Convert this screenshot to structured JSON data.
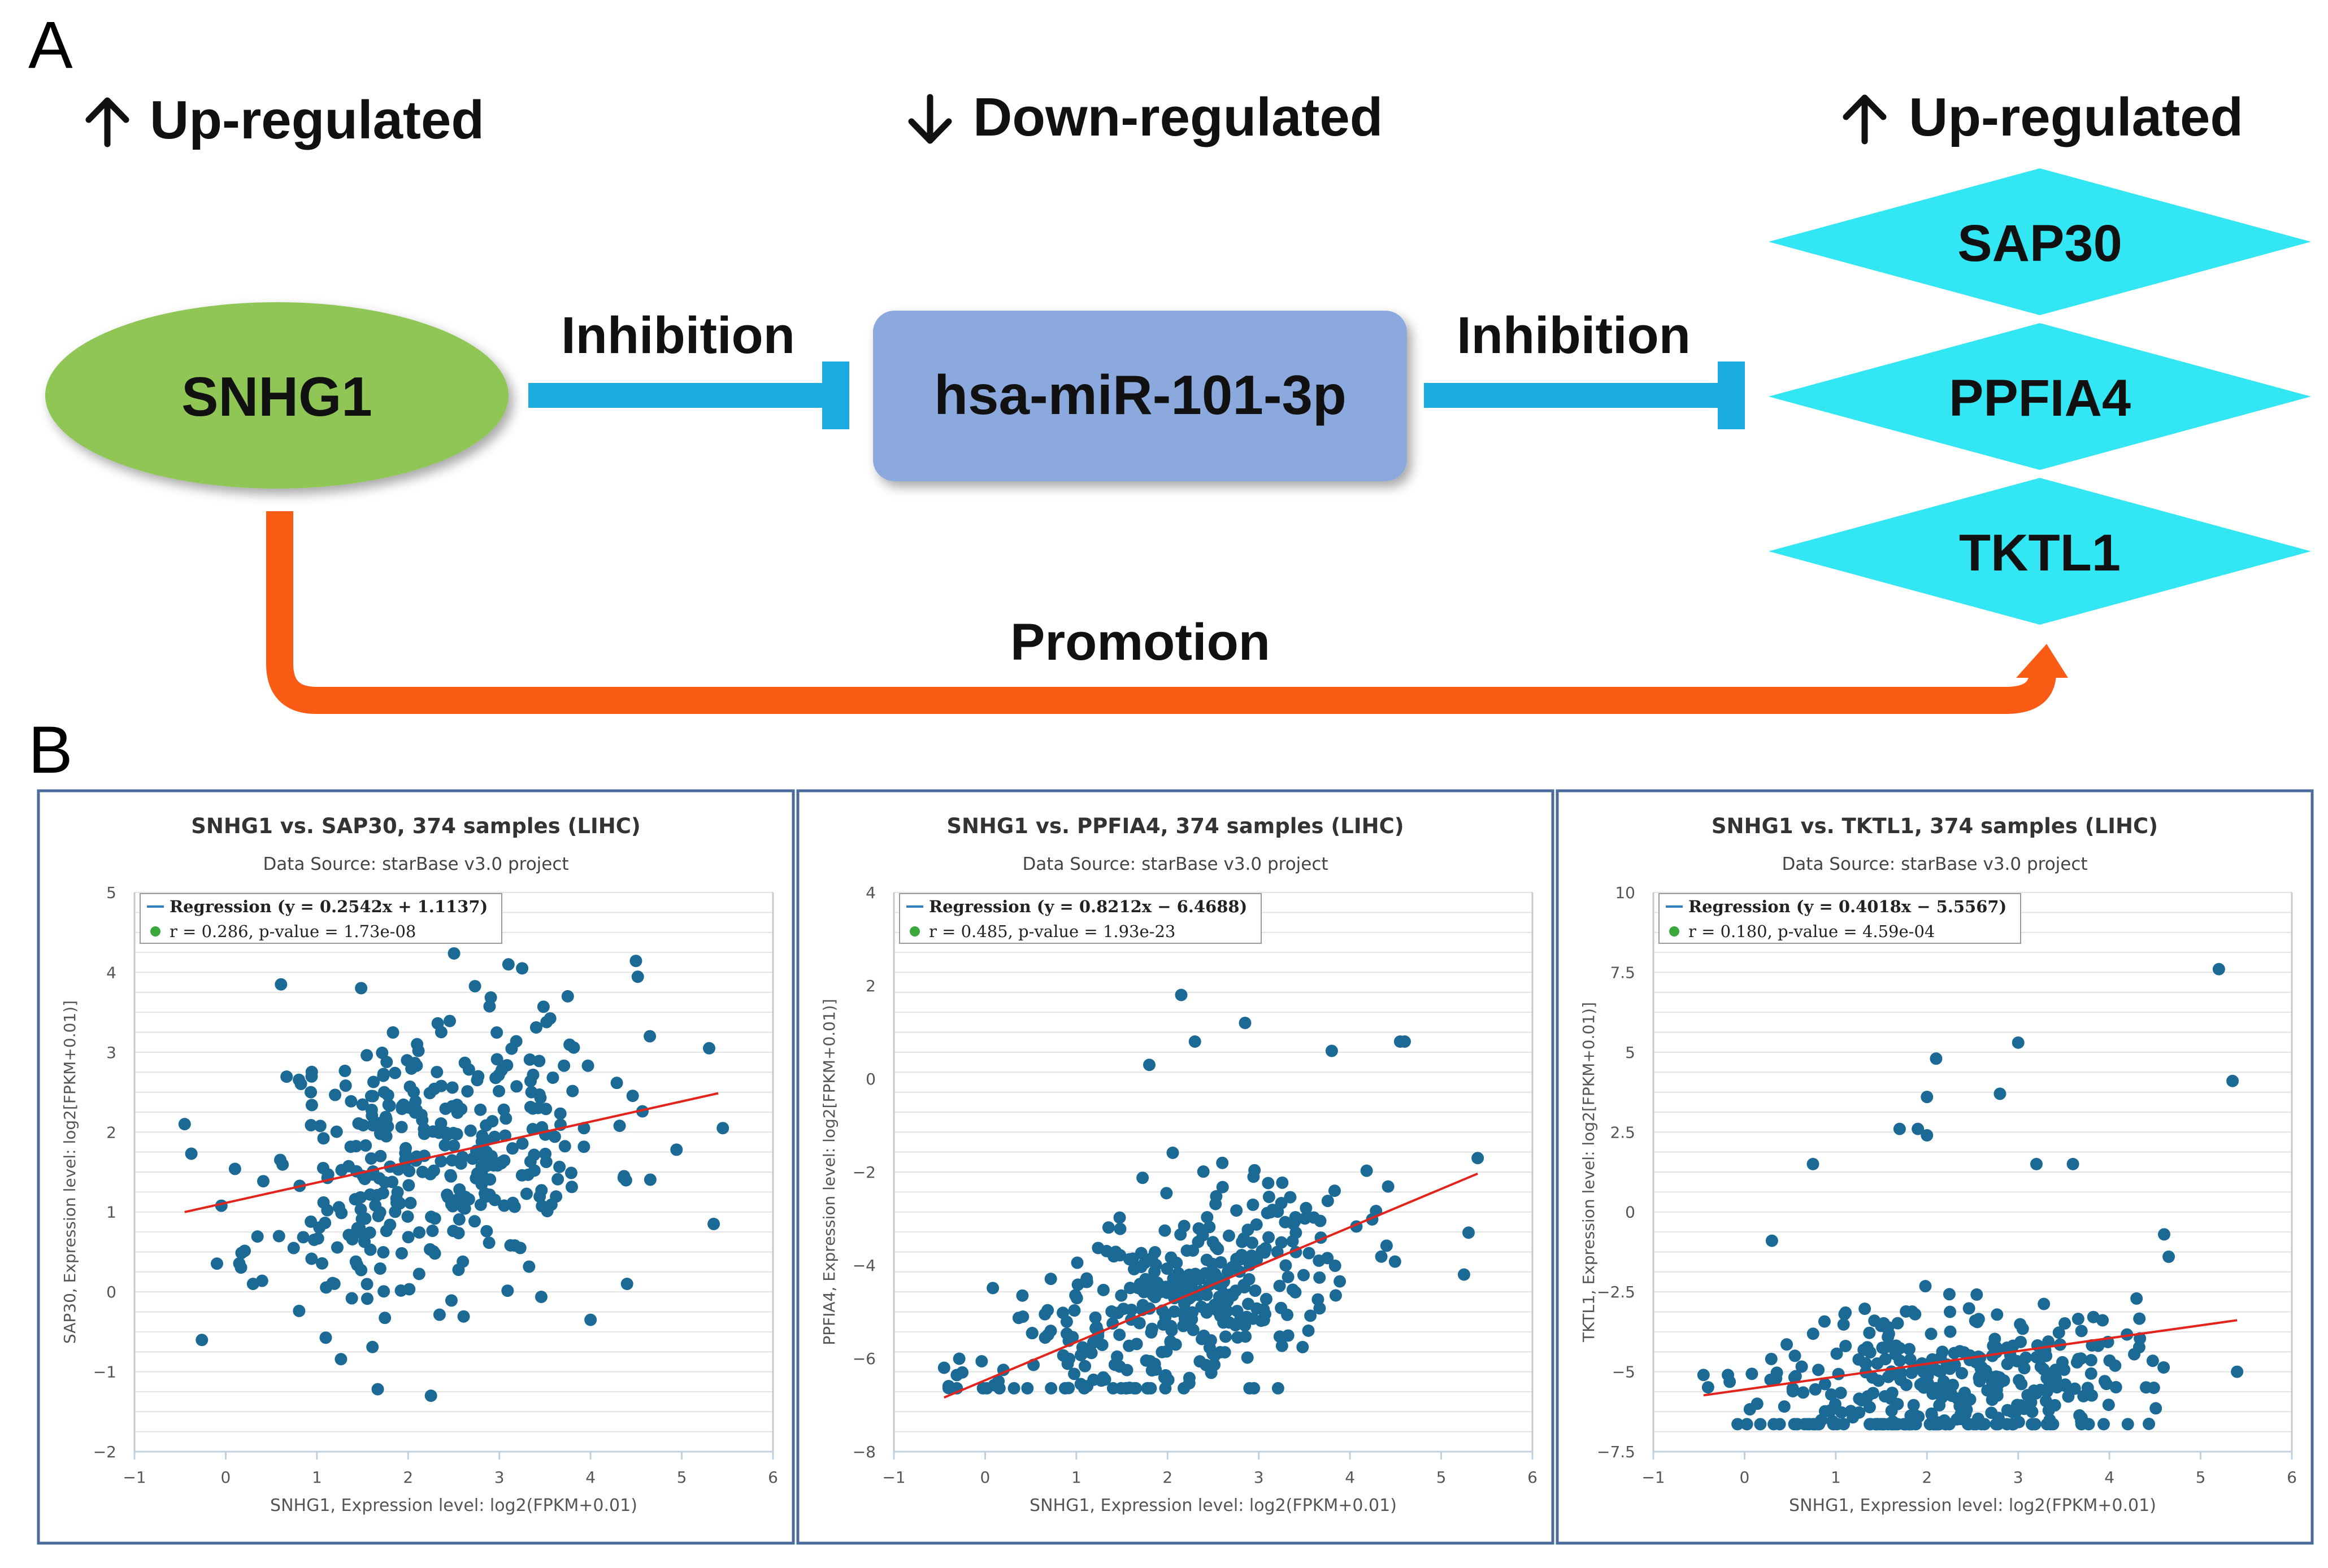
{
  "panel_a": {
    "label": "A",
    "header_left": "Up-regulated",
    "header_mid": "Down-regulated",
    "header_right": "Up-regulated",
    "node_lnc": "SNHG1",
    "node_mir": "hsa-miR-101-3p",
    "targets": [
      "SAP30",
      "PPFIA4",
      "TKTL1"
    ],
    "edge_inhibition_1": "Inhibition",
    "edge_inhibition_2": "Inhibition",
    "edge_promotion": "Promotion",
    "colors": {
      "lnc": "#8fc654",
      "mir": "#8ba9dc",
      "target": "#33e6f4",
      "inhibit": "#1aabdf",
      "promote": "#fb5c15",
      "frame": "#4a6b9c",
      "point": "#1b6a96",
      "reg": "#e3241c"
    }
  },
  "panel_b": {
    "label": "B"
  },
  "chart_data": [
    {
      "type": "scatter",
      "title": "SNHG1 vs. SAP30, 374 samples (LIHC)",
      "subtitle": "Data Source: starBase v3.0 project",
      "xlabel": "SNHG1, Expression level: log2(FPKM+0.01)",
      "ylabel": "SAP30, Expression level: log2[FPKM+0.01)]",
      "xlim": [
        -1,
        6
      ],
      "ylim": [
        -2,
        5
      ],
      "xticks": [
        "−1",
        "0",
        "1",
        "2",
        "3",
        "4",
        "5",
        "6"
      ],
      "yticks": [
        "−2",
        "−1",
        "0",
        "1",
        "2",
        "3",
        "4",
        "5"
      ],
      "legend_regression": "Regression (y = 0.2542x + 1.1137)",
      "legend_stats": "r = 0.286, p-value = 1.73e-08",
      "regression": {
        "slope": 0.2542,
        "intercept": 1.1137,
        "x_range": [
          -0.45,
          5.4
        ]
      },
      "n": 374,
      "seed": 11,
      "center": [
        2.3,
        1.7
      ],
      "sd": [
        0.95,
        0.95
      ],
      "corr": 0.29,
      "y_floor": null,
      "outliers": [
        [
          2.25,
          -1.3
        ],
        [
          3.1,
          4.1
        ],
        [
          3.25,
          4.05
        ],
        [
          3.75,
          3.7
        ],
        [
          4.65,
          3.2
        ],
        [
          5.3,
          3.05
        ],
        [
          -0.45,
          2.1
        ],
        [
          5.45,
          2.05
        ],
        [
          5.35,
          0.85
        ],
        [
          4,
          -0.35
        ],
        [
          4.4,
          0.1
        ],
        [
          0.3,
          0.1
        ]
      ]
    },
    {
      "type": "scatter",
      "title": "SNHG1 vs. PPFIA4, 374 samples (LIHC)",
      "subtitle": "Data Source: starBase v3.0 project",
      "xlabel": "SNHG1, Expression level: log2(FPKM+0.01)",
      "ylabel": "PPFIA4, Expression level: log2[FPKM+0.01)]",
      "xlim": [
        -1,
        6
      ],
      "ylim": [
        -8,
        4
      ],
      "xticks": [
        "−1",
        "0",
        "1",
        "2",
        "3",
        "4",
        "5",
        "6"
      ],
      "yticks": [
        "−8",
        "−6",
        "−4",
        "−2",
        "0",
        "2",
        "4"
      ],
      "legend_regression": "Regression (y = 0.8212x − 6.4688)",
      "legend_stats": "r = 0.485, p-value = 1.93e-23",
      "regression": {
        "slope": 0.8212,
        "intercept": -6.4688,
        "x_range": [
          -0.45,
          5.4
        ]
      },
      "n": 374,
      "seed": 23,
      "center": [
        2.1,
        -4.8
      ],
      "sd": [
        0.95,
        1.2
      ],
      "corr": 0.48,
      "y_floor": -6.64,
      "outliers": [
        [
          2.15,
          1.8
        ],
        [
          2.85,
          1.2
        ],
        [
          2.3,
          0.8
        ],
        [
          1.8,
          0.3
        ],
        [
          4.6,
          0.8
        ],
        [
          4.55,
          0.8
        ],
        [
          3.8,
          0.6
        ],
        [
          5.4,
          -1.7
        ],
        [
          5.3,
          -3.3
        ],
        [
          5.25,
          -4.2
        ],
        [
          -0.45,
          -6.2
        ],
        [
          -0.25,
          -6.3
        ]
      ]
    },
    {
      "type": "scatter",
      "title": "SNHG1 vs. TKTL1, 374 samples (LIHC)",
      "subtitle": "Data Source: starBase v3.0 project",
      "xlabel": "SNHG1, Expression level: log2(FPKM+0.01)",
      "ylabel": "TKTL1, Expression level: log2[FPKM+0.01)]",
      "xlim": [
        -1,
        6
      ],
      "ylim": [
        -7.5,
        10
      ],
      "xticks": [
        "−1",
        "0",
        "1",
        "2",
        "3",
        "4",
        "5",
        "6"
      ],
      "yticks": [
        "−7.5",
        "−5",
        "−2.5",
        "0",
        "2.5",
        "5",
        "7.5",
        "10"
      ],
      "legend_regression": "Regression (y = 0.4018x − 5.5567)",
      "legend_stats": "r = 0.180, p-value = 4.59e-04",
      "regression": {
        "slope": 0.4018,
        "intercept": -5.5567,
        "x_range": [
          -0.45,
          5.4
        ]
      },
      "n": 374,
      "seed": 37,
      "center": [
        2.2,
        -5.4
      ],
      "sd": [
        1.0,
        1.3
      ],
      "corr": 0.15,
      "y_floor": -6.64,
      "outliers": [
        [
          5.2,
          7.6
        ],
        [
          5.35,
          4.1
        ],
        [
          3,
          5.3
        ],
        [
          2.1,
          4.8
        ],
        [
          2,
          3.6
        ],
        [
          2.8,
          3.7
        ],
        [
          1.7,
          2.6
        ],
        [
          1.9,
          2.6
        ],
        [
          2,
          2.4
        ],
        [
          0.75,
          1.5
        ],
        [
          3.2,
          1.5
        ],
        [
          3.6,
          1.5
        ],
        [
          4.6,
          -0.7
        ],
        [
          4.65,
          -1.4
        ],
        [
          0.3,
          -0.9
        ],
        [
          5.4,
          -5
        ],
        [
          -0.45,
          -5.1
        ]
      ]
    }
  ]
}
